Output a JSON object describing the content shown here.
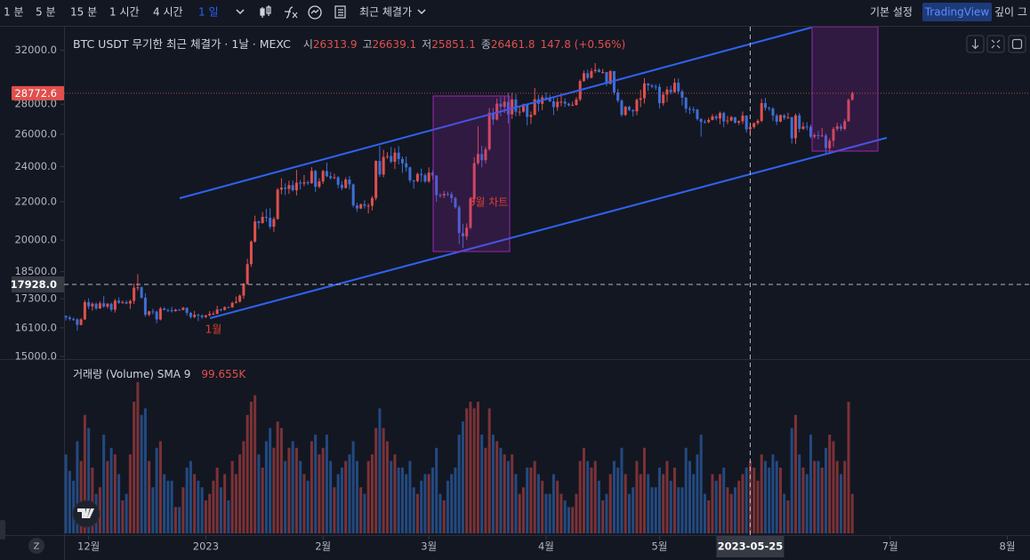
{
  "toolbar": {
    "intervals": [
      "1 분",
      "5 분",
      "15 분",
      "1 시간",
      "4 시간",
      "1 일"
    ],
    "price_type": "최근 체결가",
    "settings": "기본 설정",
    "brand": "TradingView",
    "depth": "깊이 그",
    "scale_button": "Z"
  },
  "chart_data": [
    {
      "type": "candlestick",
      "title": "BTC USDT 무기한 최근 체결가 · 1날 · MEXC",
      "legend_labels": [
        "시",
        "고",
        "저",
        "종"
      ],
      "change": "147.8 (+0.56%)",
      "up_color": "#e0504d",
      "down_color": "#3d6fd6",
      "log_scale": true,
      "ylim": [
        14870,
        33700
      ],
      "yticks": [
        {
          "value": 32000,
          "label": "32000.0"
        },
        {
          "value": 28000,
          "label": "28000.0"
        },
        {
          "value": 26000,
          "label": "26000.0"
        },
        {
          "value": 24000,
          "label": "24000.0"
        },
        {
          "value": 22000,
          "label": "22000.0"
        },
        {
          "value": 20000,
          "label": "20000.0"
        },
        {
          "value": 18500,
          "label": "18500.0"
        },
        {
          "value": 17300,
          "label": "17300.0"
        },
        {
          "value": 16100,
          "label": "16100.0"
        },
        {
          "value": 15000,
          "label": "15000.0"
        }
      ],
      "xlim": [
        -0.5,
        255
      ],
      "xticks": [
        {
          "value": 6,
          "label": "12월"
        },
        {
          "value": 37,
          "label": "2023"
        },
        {
          "value": 68,
          "label": "2월"
        },
        {
          "value": 96,
          "label": "3월"
        },
        {
          "value": 127,
          "label": "4월"
        },
        {
          "value": 157,
          "label": "5월"
        },
        {
          "value": 218,
          "label": "7월"
        },
        {
          "value": 249,
          "label": "8월"
        }
      ],
      "crosshair": {
        "x": {
          "value": 181,
          "label": "2023-05-25"
        },
        "y": {
          "value": 17928,
          "label": "17928.0"
        }
      },
      "last_price": {
        "value": 28772.6,
        "label": "28772.6"
      },
      "annotations": [
        "1월",
        "3월 차트"
      ],
      "open": [
        16580,
        16520,
        16460,
        16440,
        16220,
        16440,
        17160,
        16980,
        17090,
        16890,
        17110,
        16970,
        17090,
        16840,
        17220,
        17130,
        17160,
        17100,
        17210,
        17780,
        17800,
        17350,
        16630,
        16770,
        16760,
        16440,
        16890,
        16830,
        16820,
        16780,
        16840,
        16830,
        16920,
        16710,
        16540,
        16630,
        16600,
        16540,
        16610,
        16670,
        16670,
        16850,
        16830,
        16950,
        16940,
        17130,
        17180,
        17440,
        17940,
        18850,
        19930,
        20950,
        20870,
        21190,
        21140,
        20680,
        21080,
        22670,
        22780,
        22710,
        22920,
        22630,
        23060,
        23010,
        23080,
        23030,
        23740,
        22830,
        23130,
        23730,
        23430,
        23330,
        23370,
        22940,
        22760,
        23240,
        22960,
        21800,
        21630,
        21860,
        21780,
        21780,
        22200,
        24330,
        23530,
        24580,
        24630,
        24280,
        24840,
        24450,
        24190,
        23950,
        23190,
        23150,
        23560,
        23490,
        23130,
        23640,
        23470,
        22360,
        22350,
        22430,
        22410,
        22200,
        21700,
        20360,
        20190,
        20630,
        22160,
        24200,
        24750,
        24380,
        25050,
        27420,
        26960,
        28040,
        27820,
        28170,
        27310,
        28330,
        27490,
        27490,
        27990,
        27140,
        27270,
        28350,
        28030,
        28480,
        28470,
        28200,
        27800,
        28170,
        28180,
        28040,
        27920,
        27950,
        28330,
        29650,
        30230,
        29890,
        30390,
        30490,
        30320,
        30320,
        29450,
        30390,
        28820,
        28250,
        27270,
        27820,
        27600,
        27510,
        28310,
        28420,
        29480,
        29340,
        29250,
        29230,
        28070,
        28680,
        29030,
        28850,
        29530,
        28900,
        28450,
        27690,
        27640,
        27630,
        26990,
        26800,
        26790,
        26930,
        27170,
        27030,
        27400,
        26830,
        26890,
        27120,
        26750,
        26850,
        27220,
        26313.9,
        26461.8,
        26720,
        26870,
        28080,
        27750,
        27700,
        27220,
        26820,
        27250,
        27070,
        27120,
        25740,
        27240,
        26340,
        26500,
        26480,
        25840,
        25940,
        25900,
        25920,
        25120,
        25580,
        26340,
        26510,
        26340,
        26850,
        28310
      ],
      "high": [
        16610,
        16590,
        16520,
        16490,
        16500,
        17250,
        17320,
        17150,
        17140,
        17200,
        17420,
        17120,
        17140,
        17300,
        17360,
        17230,
        17230,
        17260,
        17970,
        18390,
        17850,
        17540,
        16800,
        16880,
        16810,
        16960,
        16950,
        16880,
        16960,
        16880,
        16870,
        16960,
        16940,
        16750,
        16790,
        16680,
        16650,
        16630,
        16780,
        16770,
        17000,
        16890,
        16980,
        16980,
        17180,
        17400,
        17490,
        18000,
        19100,
        19990,
        21250,
        21000,
        21450,
        21620,
        21650,
        21190,
        22760,
        23320,
        23020,
        23170,
        23180,
        23800,
        23220,
        23500,
        23180,
        23960,
        23800,
        23310,
        23810,
        24240,
        23680,
        23580,
        23440,
        23160,
        23370,
        23450,
        23010,
        21940,
        21900,
        22080,
        21900,
        22310,
        24370,
        25250,
        25020,
        24870,
        25190,
        25120,
        25250,
        24600,
        24600,
        24000,
        23220,
        23650,
        23880,
        23600,
        23950,
        23780,
        23490,
        22460,
        22590,
        22560,
        22550,
        22270,
        21810,
        20830,
        20850,
        22260,
        24560,
        26500,
        25260,
        25200,
        27750,
        27740,
        28400,
        28500,
        28530,
        28800,
        28800,
        28720,
        27800,
        28050,
        28020,
        27510,
        29150,
        28670,
        28640,
        28820,
        28670,
        28490,
        28440,
        28760,
        28420,
        28100,
        28180,
        28500,
        29770,
        30440,
        30500,
        30610,
        31000,
        30600,
        30550,
        30320,
        30470,
        30410,
        29080,
        28360,
        27890,
        27900,
        27660,
        28400,
        29020,
        29870,
        29490,
        29440,
        29420,
        29450,
        28880,
        29260,
        29330,
        29850,
        29850,
        29040,
        28520,
        27850,
        27820,
        27680,
        27060,
        26950,
        27080,
        27320,
        27280,
        27500,
        27480,
        27200,
        27200,
        27140,
        26900,
        27500,
        27250,
        26639.1,
        26760,
        26980,
        28380,
        28440,
        27830,
        27800,
        27350,
        27300,
        27330,
        27420,
        27130,
        27360,
        27400,
        26780,
        26780,
        26620,
        26050,
        26210,
        26400,
        26040,
        25740,
        26460,
        26750,
        26680,
        27000,
        28400,
        28900
      ],
      "low": [
        16400,
        16390,
        16380,
        16000,
        16200,
        16420,
        16860,
        16800,
        16830,
        16870,
        16920,
        16890,
        16760,
        16720,
        17090,
        17090,
        17070,
        16870,
        17080,
        17650,
        17300,
        16550,
        16570,
        16650,
        16280,
        16400,
        16810,
        16740,
        16720,
        16760,
        16800,
        16810,
        16600,
        16470,
        16490,
        16370,
        16460,
        16490,
        16560,
        16620,
        16650,
        16770,
        16810,
        16900,
        16920,
        17100,
        17140,
        17300,
        17910,
        18720,
        19880,
        20560,
        20830,
        20930,
        20570,
        20420,
        21040,
        22400,
        22360,
        22430,
        22560,
        22340,
        22670,
        22860,
        22920,
        22990,
        22540,
        22740,
        22980,
        23370,
        23240,
        23260,
        22740,
        22630,
        22730,
        22680,
        21690,
        21450,
        21600,
        21630,
        21370,
        21530,
        22070,
        23390,
        23370,
        24450,
        24200,
        23850,
        24120,
        23620,
        23690,
        23060,
        22720,
        23080,
        23100,
        23040,
        23050,
        23240,
        21990,
        22210,
        22200,
        22300,
        21950,
        21620,
        19800,
        19620,
        20020,
        20550,
        21900,
        24100,
        23950,
        24190,
        24950,
        26600,
        26900,
        27170,
        27400,
        26690,
        27000,
        27180,
        27200,
        27420,
        26560,
        26670,
        27250,
        27500,
        27590,
        28260,
        28150,
        27260,
        27550,
        27860,
        27800,
        27850,
        27880,
        27900,
        28200,
        29600,
        29770,
        29850,
        30240,
        30280,
        30200,
        29280,
        29400,
        28650,
        28110,
        27150,
        27200,
        27520,
        27160,
        27250,
        27800,
        28050,
        28950,
        29130,
        29000,
        27700,
        27900,
        28150,
        28700,
        28800,
        28700,
        27910,
        27420,
        27320,
        27400,
        26890,
        25850,
        26700,
        26710,
        26900,
        26900,
        26650,
        26450,
        26650,
        26840,
        26690,
        26600,
        26660,
        26100,
        25851.1,
        26350,
        26600,
        26770,
        27560,
        27550,
        26860,
        26600,
        26770,
        26930,
        26990,
        25400,
        25380,
        26120,
        26270,
        26250,
        25730,
        25720,
        25660,
        25820,
        24800,
        24750,
        25200,
        26200,
        26200,
        26250,
        26820,
        28250
      ],
      "close": [
        16520,
        16460,
        16440,
        16220,
        16440,
        17160,
        16980,
        17090,
        16890,
        17110,
        16970,
        17090,
        16840,
        17220,
        17130,
        17160,
        17100,
        17210,
        17780,
        17800,
        17350,
        16630,
        16770,
        16760,
        16440,
        16890,
        16830,
        16820,
        16780,
        16840,
        16830,
        16920,
        16710,
        16540,
        16630,
        16600,
        16540,
        16610,
        16670,
        16670,
        16850,
        16830,
        16950,
        16940,
        17130,
        17180,
        17440,
        17940,
        18850,
        19930,
        20950,
        20870,
        21190,
        21140,
        20680,
        21080,
        22670,
        22780,
        22710,
        22920,
        22630,
        23060,
        23010,
        23080,
        23030,
        23740,
        22830,
        23130,
        23730,
        23430,
        23330,
        23370,
        22940,
        22760,
        23240,
        22960,
        21800,
        21630,
        21860,
        21780,
        21780,
        22200,
        24330,
        23530,
        24580,
        24630,
        24280,
        24840,
        24450,
        24190,
        23950,
        23190,
        23150,
        23560,
        23490,
        23130,
        23640,
        23470,
        22360,
        22350,
        22430,
        22410,
        22200,
        21700,
        20360,
        20190,
        20630,
        22160,
        24200,
        24750,
        24380,
        25050,
        27420,
        26960,
        28040,
        27820,
        28170,
        27310,
        28330,
        27490,
        27490,
        27990,
        27140,
        27270,
        28350,
        28030,
        28480,
        28470,
        28200,
        27800,
        28170,
        28180,
        28040,
        27920,
        27950,
        28330,
        29650,
        30230,
        29890,
        30390,
        30490,
        30320,
        30320,
        29450,
        30390,
        28820,
        28250,
        27270,
        27820,
        27600,
        27510,
        28310,
        28420,
        29480,
        29340,
        29250,
        29230,
        28070,
        28680,
        29030,
        28850,
        29530,
        28900,
        28450,
        27690,
        27640,
        27630,
        26990,
        26800,
        26790,
        26930,
        27170,
        27030,
        27400,
        26830,
        26890,
        27120,
        26750,
        26850,
        27220,
        26313.9,
        26461.8,
        26720,
        26870,
        28080,
        27750,
        27700,
        27220,
        26820,
        27250,
        27070,
        27120,
        25740,
        27240,
        26340,
        26500,
        26480,
        25840,
        25940,
        25900,
        25920,
        25120,
        25580,
        26340,
        26510,
        26340,
        26850,
        28310,
        28772.6
      ]
    },
    {
      "type": "bar",
      "title": "거래량 (Volume) SMA 9",
      "sma": "99.655K",
      "up_color": "#7b3236",
      "down_color": "#234a80",
      "ylim": [
        0,
        250000
      ],
      "values": [
        120000,
        95000,
        80000,
        140000,
        110000,
        180000,
        160000,
        100000,
        60000,
        70000,
        150000,
        110000,
        130000,
        120000,
        90000,
        50000,
        60000,
        120000,
        200000,
        230000,
        180000,
        190000,
        110000,
        70000,
        130000,
        140000,
        90000,
        80000,
        80000,
        40000,
        40000,
        70000,
        100000,
        110000,
        90000,
        80000,
        70000,
        50000,
        60000,
        80000,
        100000,
        70000,
        90000,
        50000,
        110000,
        90000,
        120000,
        140000,
        180000,
        200000,
        210000,
        120000,
        100000,
        140000,
        160000,
        130000,
        170000,
        160000,
        110000,
        130000,
        140000,
        130000,
        110000,
        90000,
        80000,
        140000,
        150000,
        120000,
        130000,
        150000,
        110000,
        70000,
        90000,
        100000,
        110000,
        120000,
        140000,
        110000,
        70000,
        60000,
        110000,
        120000,
        160000,
        190000,
        160000,
        140000,
        110000,
        120000,
        100000,
        100000,
        90000,
        110000,
        70000,
        60000,
        80000,
        90000,
        90000,
        100000,
        130000,
        60000,
        50000,
        80000,
        90000,
        100000,
        150000,
        170000,
        190000,
        200000,
        190000,
        200000,
        150000,
        130000,
        190000,
        150000,
        140000,
        130000,
        120000,
        110000,
        120000,
        90000,
        60000,
        70000,
        100000,
        100000,
        110000,
        90000,
        80000,
        60000,
        60000,
        90000,
        80000,
        60000,
        50000,
        40000,
        40000,
        60000,
        110000,
        130000,
        110000,
        100000,
        110000,
        80000,
        50000,
        60000,
        90000,
        110000,
        100000,
        130000,
        90000,
        60000,
        70000,
        110000,
        90000,
        130000,
        90000,
        70000,
        70000,
        100000,
        90000,
        110000,
        80000,
        100000,
        70000,
        70000,
        130000,
        110000,
        90000,
        120000,
        150000,
        60000,
        50000,
        90000,
        80000,
        90000,
        100000,
        70000,
        60000,
        70000,
        80000,
        90000,
        100000,
        110000,
        100000,
        80000,
        120000,
        110000,
        100000,
        120000,
        110000,
        100000,
        60000,
        50000,
        160000,
        180000,
        120000,
        100000,
        90000,
        150000,
        110000,
        110000,
        100000,
        130000,
        150000,
        140000,
        110000,
        90000,
        110000,
        200000,
        60000
      ]
    }
  ]
}
